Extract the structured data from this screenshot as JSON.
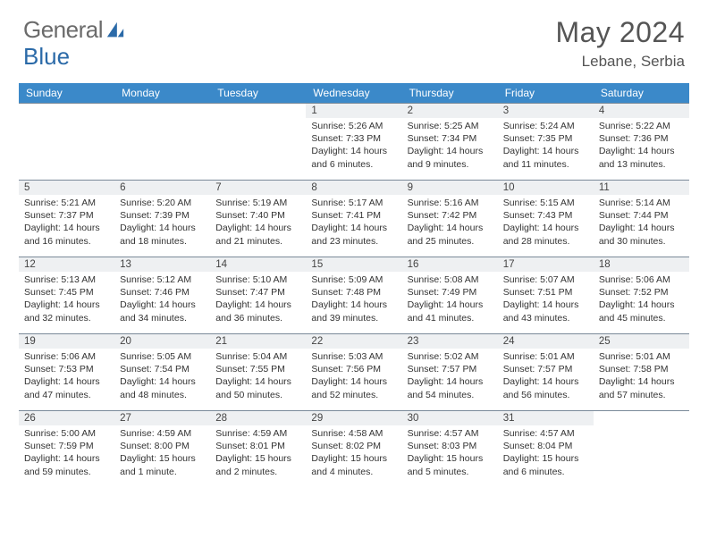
{
  "brand": {
    "part1": "General",
    "part2": "Blue"
  },
  "title": "May 2024",
  "location": "Lebane, Serbia",
  "header_color": "#3b89c9",
  "daynum_bg": "#eef0f2",
  "border_color": "#7a8a99",
  "days_of_week": [
    "Sunday",
    "Monday",
    "Tuesday",
    "Wednesday",
    "Thursday",
    "Friday",
    "Saturday"
  ],
  "weeks": [
    [
      null,
      null,
      null,
      {
        "n": "1",
        "sr": "Sunrise: 5:26 AM",
        "ss": "Sunset: 7:33 PM",
        "d1": "Daylight: 14 hours",
        "d2": "and 6 minutes."
      },
      {
        "n": "2",
        "sr": "Sunrise: 5:25 AM",
        "ss": "Sunset: 7:34 PM",
        "d1": "Daylight: 14 hours",
        "d2": "and 9 minutes."
      },
      {
        "n": "3",
        "sr": "Sunrise: 5:24 AM",
        "ss": "Sunset: 7:35 PM",
        "d1": "Daylight: 14 hours",
        "d2": "and 11 minutes."
      },
      {
        "n": "4",
        "sr": "Sunrise: 5:22 AM",
        "ss": "Sunset: 7:36 PM",
        "d1": "Daylight: 14 hours",
        "d2": "and 13 minutes."
      }
    ],
    [
      {
        "n": "5",
        "sr": "Sunrise: 5:21 AM",
        "ss": "Sunset: 7:37 PM",
        "d1": "Daylight: 14 hours",
        "d2": "and 16 minutes."
      },
      {
        "n": "6",
        "sr": "Sunrise: 5:20 AM",
        "ss": "Sunset: 7:39 PM",
        "d1": "Daylight: 14 hours",
        "d2": "and 18 minutes."
      },
      {
        "n": "7",
        "sr": "Sunrise: 5:19 AM",
        "ss": "Sunset: 7:40 PM",
        "d1": "Daylight: 14 hours",
        "d2": "and 21 minutes."
      },
      {
        "n": "8",
        "sr": "Sunrise: 5:17 AM",
        "ss": "Sunset: 7:41 PM",
        "d1": "Daylight: 14 hours",
        "d2": "and 23 minutes."
      },
      {
        "n": "9",
        "sr": "Sunrise: 5:16 AM",
        "ss": "Sunset: 7:42 PM",
        "d1": "Daylight: 14 hours",
        "d2": "and 25 minutes."
      },
      {
        "n": "10",
        "sr": "Sunrise: 5:15 AM",
        "ss": "Sunset: 7:43 PM",
        "d1": "Daylight: 14 hours",
        "d2": "and 28 minutes."
      },
      {
        "n": "11",
        "sr": "Sunrise: 5:14 AM",
        "ss": "Sunset: 7:44 PM",
        "d1": "Daylight: 14 hours",
        "d2": "and 30 minutes."
      }
    ],
    [
      {
        "n": "12",
        "sr": "Sunrise: 5:13 AM",
        "ss": "Sunset: 7:45 PM",
        "d1": "Daylight: 14 hours",
        "d2": "and 32 minutes."
      },
      {
        "n": "13",
        "sr": "Sunrise: 5:12 AM",
        "ss": "Sunset: 7:46 PM",
        "d1": "Daylight: 14 hours",
        "d2": "and 34 minutes."
      },
      {
        "n": "14",
        "sr": "Sunrise: 5:10 AM",
        "ss": "Sunset: 7:47 PM",
        "d1": "Daylight: 14 hours",
        "d2": "and 36 minutes."
      },
      {
        "n": "15",
        "sr": "Sunrise: 5:09 AM",
        "ss": "Sunset: 7:48 PM",
        "d1": "Daylight: 14 hours",
        "d2": "and 39 minutes."
      },
      {
        "n": "16",
        "sr": "Sunrise: 5:08 AM",
        "ss": "Sunset: 7:49 PM",
        "d1": "Daylight: 14 hours",
        "d2": "and 41 minutes."
      },
      {
        "n": "17",
        "sr": "Sunrise: 5:07 AM",
        "ss": "Sunset: 7:51 PM",
        "d1": "Daylight: 14 hours",
        "d2": "and 43 minutes."
      },
      {
        "n": "18",
        "sr": "Sunrise: 5:06 AM",
        "ss": "Sunset: 7:52 PM",
        "d1": "Daylight: 14 hours",
        "d2": "and 45 minutes."
      }
    ],
    [
      {
        "n": "19",
        "sr": "Sunrise: 5:06 AM",
        "ss": "Sunset: 7:53 PM",
        "d1": "Daylight: 14 hours",
        "d2": "and 47 minutes."
      },
      {
        "n": "20",
        "sr": "Sunrise: 5:05 AM",
        "ss": "Sunset: 7:54 PM",
        "d1": "Daylight: 14 hours",
        "d2": "and 48 minutes."
      },
      {
        "n": "21",
        "sr": "Sunrise: 5:04 AM",
        "ss": "Sunset: 7:55 PM",
        "d1": "Daylight: 14 hours",
        "d2": "and 50 minutes."
      },
      {
        "n": "22",
        "sr": "Sunrise: 5:03 AM",
        "ss": "Sunset: 7:56 PM",
        "d1": "Daylight: 14 hours",
        "d2": "and 52 minutes."
      },
      {
        "n": "23",
        "sr": "Sunrise: 5:02 AM",
        "ss": "Sunset: 7:57 PM",
        "d1": "Daylight: 14 hours",
        "d2": "and 54 minutes."
      },
      {
        "n": "24",
        "sr": "Sunrise: 5:01 AM",
        "ss": "Sunset: 7:57 PM",
        "d1": "Daylight: 14 hours",
        "d2": "and 56 minutes."
      },
      {
        "n": "25",
        "sr": "Sunrise: 5:01 AM",
        "ss": "Sunset: 7:58 PM",
        "d1": "Daylight: 14 hours",
        "d2": "and 57 minutes."
      }
    ],
    [
      {
        "n": "26",
        "sr": "Sunrise: 5:00 AM",
        "ss": "Sunset: 7:59 PM",
        "d1": "Daylight: 14 hours",
        "d2": "and 59 minutes."
      },
      {
        "n": "27",
        "sr": "Sunrise: 4:59 AM",
        "ss": "Sunset: 8:00 PM",
        "d1": "Daylight: 15 hours",
        "d2": "and 1 minute."
      },
      {
        "n": "28",
        "sr": "Sunrise: 4:59 AM",
        "ss": "Sunset: 8:01 PM",
        "d1": "Daylight: 15 hours",
        "d2": "and 2 minutes."
      },
      {
        "n": "29",
        "sr": "Sunrise: 4:58 AM",
        "ss": "Sunset: 8:02 PM",
        "d1": "Daylight: 15 hours",
        "d2": "and 4 minutes."
      },
      {
        "n": "30",
        "sr": "Sunrise: 4:57 AM",
        "ss": "Sunset: 8:03 PM",
        "d1": "Daylight: 15 hours",
        "d2": "and 5 minutes."
      },
      {
        "n": "31",
        "sr": "Sunrise: 4:57 AM",
        "ss": "Sunset: 8:04 PM",
        "d1": "Daylight: 15 hours",
        "d2": "and 6 minutes."
      },
      null
    ]
  ]
}
